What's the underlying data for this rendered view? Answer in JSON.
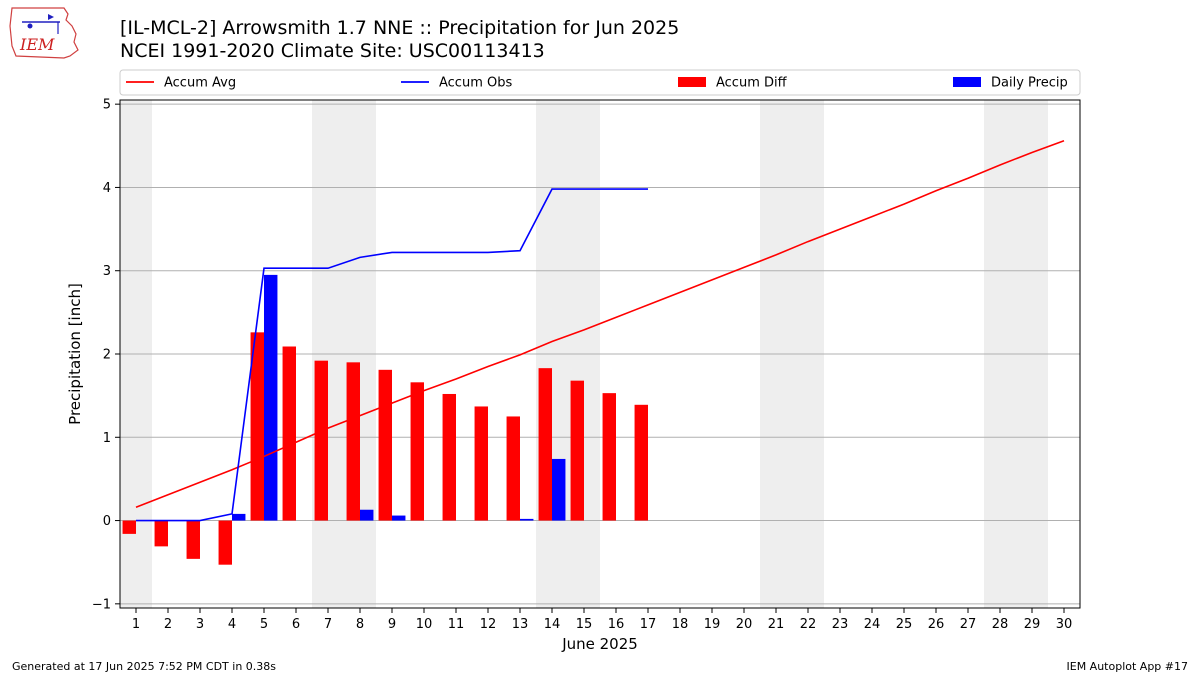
{
  "header": {
    "title_line1": "[IL-MCL-2] Arrowsmith 1.7 NNE :: Precipitation for Jun 2025",
    "title_line2": "NCEI 1991-2020 Climate Site: USC00113413"
  },
  "logo": {
    "text": "IEM"
  },
  "footer": {
    "generated": "Generated at 17 Jun 2025 7:52 PM CDT in 0.38s",
    "app": "IEM Autoplot App #17"
  },
  "colors": {
    "accum_avg": "#ff0000",
    "accum_obs": "#0000ff",
    "accum_diff": "#ff0000",
    "daily_precip": "#0000ff",
    "weekend_band": "#eeeeee",
    "grid": "#b0b0b0"
  },
  "chart_data": {
    "type": "bar",
    "xlabel": "June 2025",
    "ylabel": "Precipitation [inch]",
    "xlim": [
      0.5,
      30.5
    ],
    "ylim": [
      -1.05,
      5.05
    ],
    "yticks": [
      -1,
      0,
      1,
      2,
      3,
      4,
      5
    ],
    "xticks": [
      1,
      2,
      3,
      4,
      5,
      6,
      7,
      8,
      9,
      10,
      11,
      12,
      13,
      14,
      15,
      16,
      17,
      18,
      19,
      20,
      21,
      22,
      23,
      24,
      25,
      26,
      27,
      28,
      29,
      30
    ],
    "grid": "y",
    "legend_placement": "top",
    "weekend_days": [
      [
        1,
        1
      ],
      [
        7,
        8
      ],
      [
        14,
        15
      ],
      [
        21,
        22
      ],
      [
        28,
        29
      ]
    ],
    "series": [
      {
        "name": "Accum Avg",
        "kind": "line",
        "x": [
          1,
          2,
          3,
          4,
          5,
          6,
          7,
          8,
          9,
          10,
          11,
          12,
          13,
          14,
          15,
          16,
          17,
          18,
          19,
          20,
          21,
          22,
          23,
          24,
          25,
          26,
          27,
          28,
          29,
          30
        ],
        "values": [
          0.16,
          0.31,
          0.46,
          0.61,
          0.77,
          0.94,
          1.11,
          1.26,
          1.41,
          1.56,
          1.7,
          1.85,
          1.99,
          2.15,
          2.29,
          2.44,
          2.59,
          2.74,
          2.89,
          3.04,
          3.19,
          3.35,
          3.5,
          3.65,
          3.8,
          3.96,
          4.11,
          4.27,
          4.42,
          4.56
        ]
      },
      {
        "name": "Accum Obs",
        "kind": "line",
        "x": [
          1,
          2,
          3,
          4,
          5,
          6,
          7,
          8,
          9,
          10,
          11,
          12,
          13,
          14,
          15,
          16,
          17
        ],
        "values": [
          0.0,
          0.0,
          0.0,
          0.08,
          3.03,
          3.03,
          3.03,
          3.16,
          3.22,
          3.22,
          3.22,
          3.22,
          3.24,
          3.98,
          3.98,
          3.98,
          3.98
        ]
      },
      {
        "name": "Accum Diff",
        "kind": "bar",
        "x": [
          1,
          2,
          3,
          4,
          5,
          6,
          7,
          8,
          9,
          10,
          11,
          12,
          13,
          14,
          15,
          16,
          17
        ],
        "values": [
          -0.16,
          -0.31,
          -0.46,
          -0.53,
          2.26,
          2.09,
          1.92,
          1.9,
          1.81,
          1.66,
          1.52,
          1.37,
          1.25,
          1.83,
          1.68,
          1.53,
          1.39
        ]
      },
      {
        "name": "Daily Precip",
        "kind": "bar",
        "x": [
          1,
          2,
          3,
          4,
          5,
          6,
          7,
          8,
          9,
          10,
          11,
          12,
          13,
          14,
          15,
          16,
          17
        ],
        "values": [
          0.0,
          0.0,
          0.0,
          0.08,
          2.95,
          0.0,
          0.0,
          0.13,
          0.06,
          0.0,
          0.0,
          0.0,
          0.02,
          0.74,
          0.0,
          0.0,
          0.0
        ]
      }
    ]
  }
}
